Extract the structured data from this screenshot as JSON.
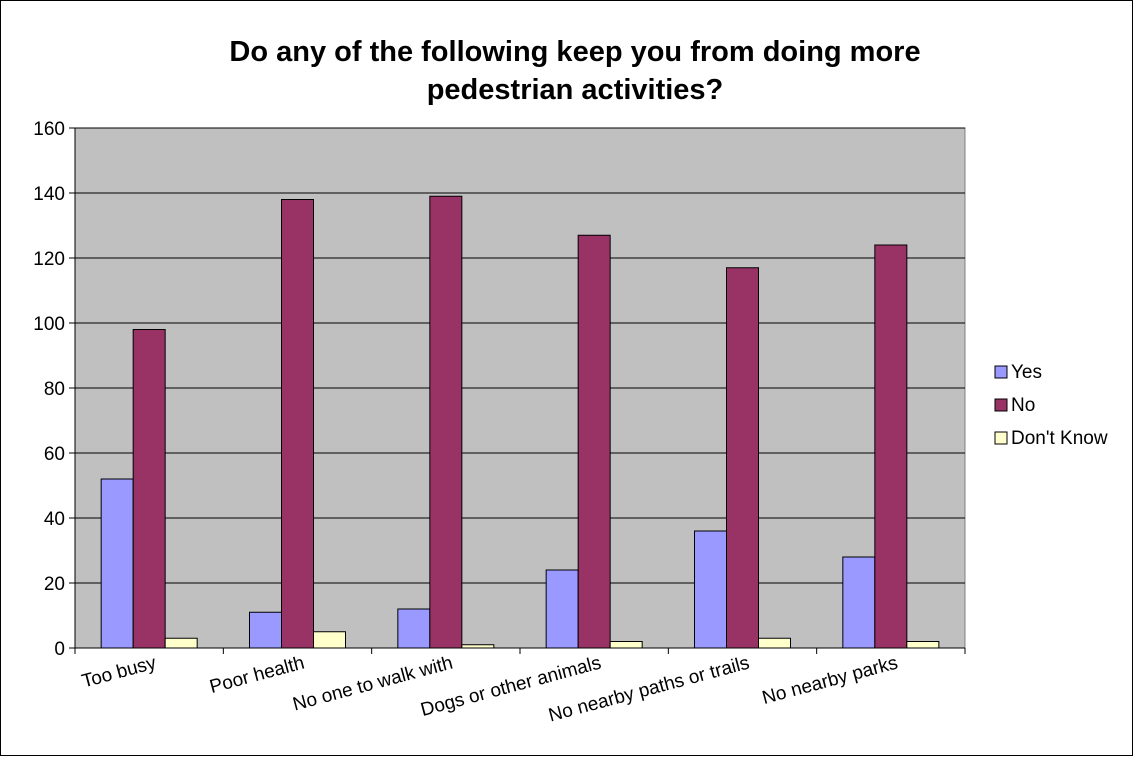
{
  "chart_data": {
    "type": "bar",
    "title": "Do any of the following keep you from doing more pedestrian activities?",
    "title_lines": [
      "Do any of the following keep you from doing more",
      "pedestrian activities?"
    ],
    "xlabel": "",
    "ylabel": "",
    "categories": [
      "Too busy",
      "Poor health",
      "No one to walk with",
      "Dogs or other animals",
      "No nearby paths or trails",
      "No nearby parks"
    ],
    "series": [
      {
        "name": "Yes",
        "values": [
          52,
          11,
          12,
          24,
          36,
          28
        ],
        "color": "#9999FF"
      },
      {
        "name": "No",
        "values": [
          98,
          138,
          139,
          127,
          117,
          124
        ],
        "color": "#993366"
      },
      {
        "name": "Don't Know",
        "values": [
          3,
          5,
          1,
          2,
          3,
          2
        ],
        "color": "#FFFFCC"
      }
    ],
    "ylim": [
      0,
      160
    ],
    "yticks": [
      "0",
      "20",
      "40",
      "60",
      "80",
      "100",
      "120",
      "140",
      "160"
    ],
    "grid": true,
    "legend": "right",
    "plot_background": "#C0C0C0"
  }
}
